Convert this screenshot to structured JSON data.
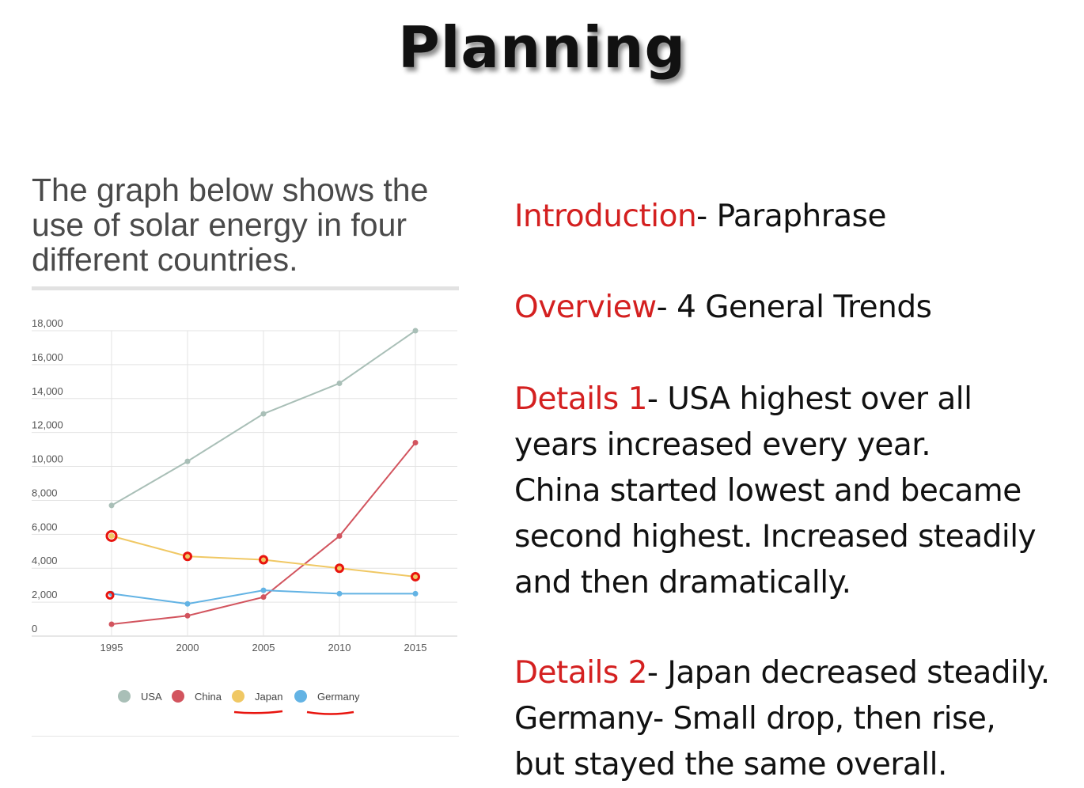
{
  "slide": {
    "title": "Planning"
  },
  "question": {
    "text": "The graph below shows the use of solar energy in four different countries."
  },
  "notes": {
    "introduction": {
      "heading": "Introduction",
      "body": "- Paraphrase"
    },
    "overview": {
      "heading": "Overview",
      "body": "- 4 General Trends"
    },
    "details1": {
      "heading": "Details 1",
      "lines": [
        "- USA highest over all",
        "years increased every year.",
        "China started lowest and became",
        "second highest. Increased steadily",
        "and then dramatically."
      ]
    },
    "details2": {
      "heading": "Details 2",
      "lines": [
        "- Japan decreased steadily.",
        "Germany- Small drop, then rise,",
        "but stayed the same overall."
      ]
    }
  },
  "colors": {
    "accent_red": "#d42020",
    "usa": "#a9bfb7",
    "china": "#d2545e",
    "japan": "#f0c864",
    "germany": "#63b3e4",
    "annotation": "#e8140e"
  },
  "chart_data": {
    "type": "line",
    "x": [
      "1995",
      "2000",
      "2005",
      "2010",
      "2015"
    ],
    "ylim": [
      0,
      18000
    ],
    "yticks": [
      "0",
      "2,000",
      "4,000",
      "6,000",
      "8,000",
      "10,000",
      "12,000",
      "14,000",
      "16,000",
      "18,000"
    ],
    "grid": true,
    "legend": "bottom",
    "series": [
      {
        "name": "USA",
        "color": "#a9bfb7",
        "values": [
          7700,
          10300,
          13100,
          14900,
          18000
        ]
      },
      {
        "name": "China",
        "color": "#d2545e",
        "values": [
          700,
          1200,
          2300,
          5900,
          11400
        ]
      },
      {
        "name": "Japan",
        "color": "#f0c864",
        "values": [
          5900,
          4700,
          4500,
          4000,
          3500
        ]
      },
      {
        "name": "Germany",
        "color": "#63b3e4",
        "values": [
          2500,
          1900,
          2700,
          2500,
          2500
        ]
      }
    ]
  }
}
